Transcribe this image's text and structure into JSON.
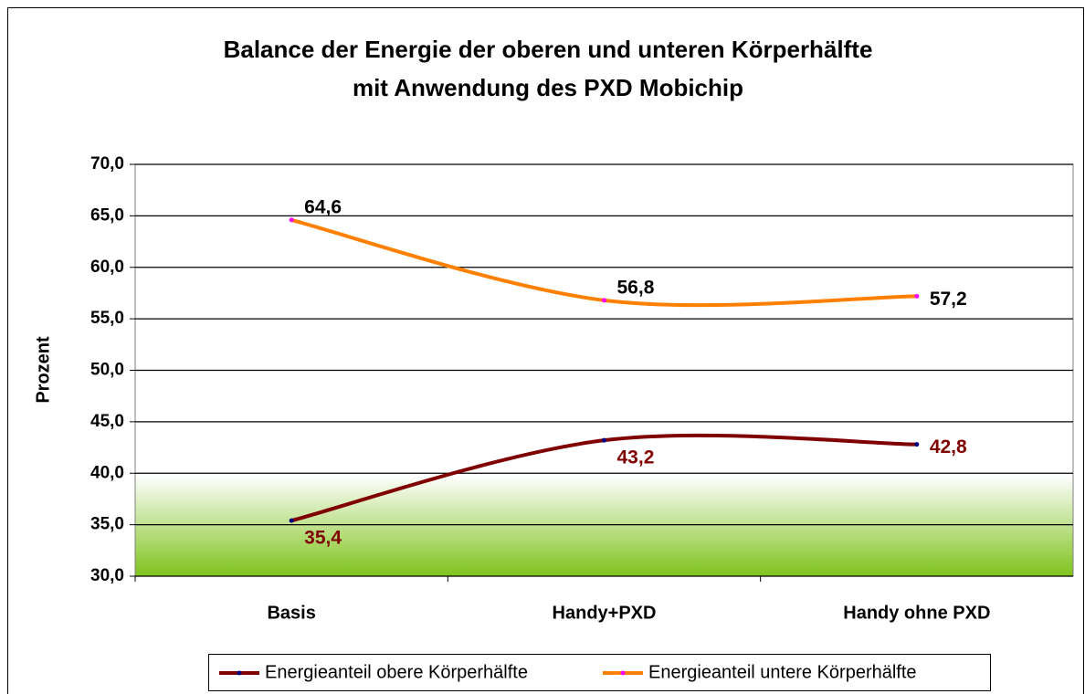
{
  "chart_data": {
    "type": "line",
    "title": "Balance der Energie der oberen und unteren Körperhälfte",
    "subtitle": "mit Anwendung des PXD Mobichip",
    "y_label": "Prozent",
    "categories": [
      "Basis",
      "Handy+PXD",
      "Handy ohne PXD"
    ],
    "series": [
      {
        "name": "Energieanteil obere Körperhälfte",
        "color": "#800000",
        "marker_color": "#000080",
        "label_color": "#800000",
        "values": [
          35.4,
          43.2,
          42.8
        ],
        "value_labels": [
          "35,4",
          "43,2",
          "42,8"
        ]
      },
      {
        "name": "Energieanteil untere Körperhälfte",
        "color": "#ff8000",
        "marker_color": "#ff00ff",
        "label_color": "#000000",
        "values": [
          64.6,
          56.8,
          57.2
        ],
        "value_labels": [
          "64,6",
          "56,8",
          "57,2"
        ]
      }
    ],
    "ylim": [
      30,
      70
    ],
    "yticks": [
      {
        "value": 30,
        "label": "30,0"
      },
      {
        "value": 35,
        "label": "35,0"
      },
      {
        "value": 40,
        "label": "40,0"
      },
      {
        "value": 45,
        "label": "45,0"
      },
      {
        "value": 50,
        "label": "50,0"
      },
      {
        "value": 55,
        "label": "55,0"
      },
      {
        "value": 60,
        "label": "60,0"
      },
      {
        "value": 65,
        "label": "65,0"
      },
      {
        "value": 70,
        "label": "70,0"
      }
    ],
    "grid": true,
    "smooth": true,
    "legend": "bottom"
  }
}
